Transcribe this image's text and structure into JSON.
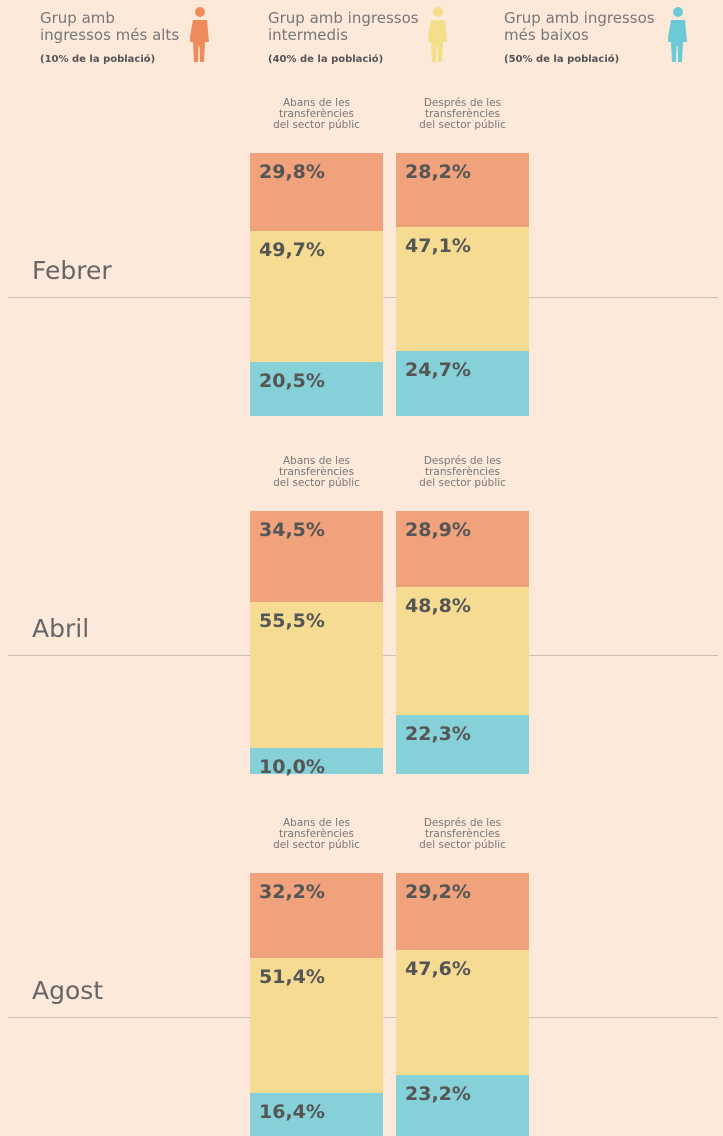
{
  "legend": [
    {
      "name": "Grup amb\ningressos més alts",
      "note": "(10% de la població)",
      "color": "#ee8a5c"
    },
    {
      "name": "Grup amb ingressos\nintermedis",
      "note": "(40% de la població)",
      "color": "#f3de8a"
    },
    {
      "name": "Grup amb ingressos\nmés baixos",
      "note": "(50% de la població)",
      "color": "#6cc9d6"
    }
  ],
  "chart_data": [
    {
      "type": "bar",
      "stacked": true,
      "title": "Febrer",
      "categories": [
        "Abans de les\ntransferències\ndel sector públic",
        "Després de les\ntransferències\ndel sector públic"
      ],
      "ylim": [
        0,
        100
      ],
      "series": [
        {
          "color": "#f0a27c",
          "values": [
            29.8,
            28.2
          ],
          "value_labels": [
            "29,8%",
            "28,2%"
          ]
        },
        {
          "color": "#f6dc92",
          "values": [
            49.7,
            47.1
          ],
          "value_labels": [
            "49,7%",
            "47,1%"
          ]
        },
        {
          "color": "#86d0d8",
          "values": [
            20.5,
            24.7
          ],
          "value_labels": [
            "20,5%",
            "24,7%"
          ]
        }
      ]
    },
    {
      "type": "bar",
      "stacked": true,
      "title": "Abril",
      "categories": [
        "Abans de les\ntransferències\ndel sector públic",
        "Després de les\ntransferències\ndel sector públic"
      ],
      "ylim": [
        0,
        100
      ],
      "series": [
        {
          "color": "#f0a27c",
          "values": [
            34.5,
            28.9
          ],
          "value_labels": [
            "34,5%",
            "28,9%"
          ]
        },
        {
          "color": "#f6dc92",
          "values": [
            55.5,
            48.8
          ],
          "value_labels": [
            "55,5%",
            "48,8%"
          ]
        },
        {
          "color": "#86d0d8",
          "values": [
            10.0,
            22.3
          ],
          "value_labels": [
            "10,0%",
            "22,3%"
          ]
        }
      ]
    },
    {
      "type": "bar",
      "stacked": true,
      "title": "Agost",
      "categories": [
        "Abans de les\ntransferències\ndel sector públic",
        "Després de les\ntransferències\ndel sector públic"
      ],
      "ylim": [
        0,
        100
      ],
      "series": [
        {
          "color": "#f0a27c",
          "values": [
            32.2,
            29.2
          ],
          "value_labels": [
            "32,2%",
            "29,2%"
          ]
        },
        {
          "color": "#f6dc92",
          "values": [
            51.4,
            47.6
          ],
          "value_labels": [
            "51,4%",
            "47,6%"
          ]
        },
        {
          "color": "#86d0d8",
          "values": [
            16.4,
            23.2
          ],
          "value_labels": [
            "16,4%",
            "23,2%"
          ]
        }
      ]
    }
  ]
}
